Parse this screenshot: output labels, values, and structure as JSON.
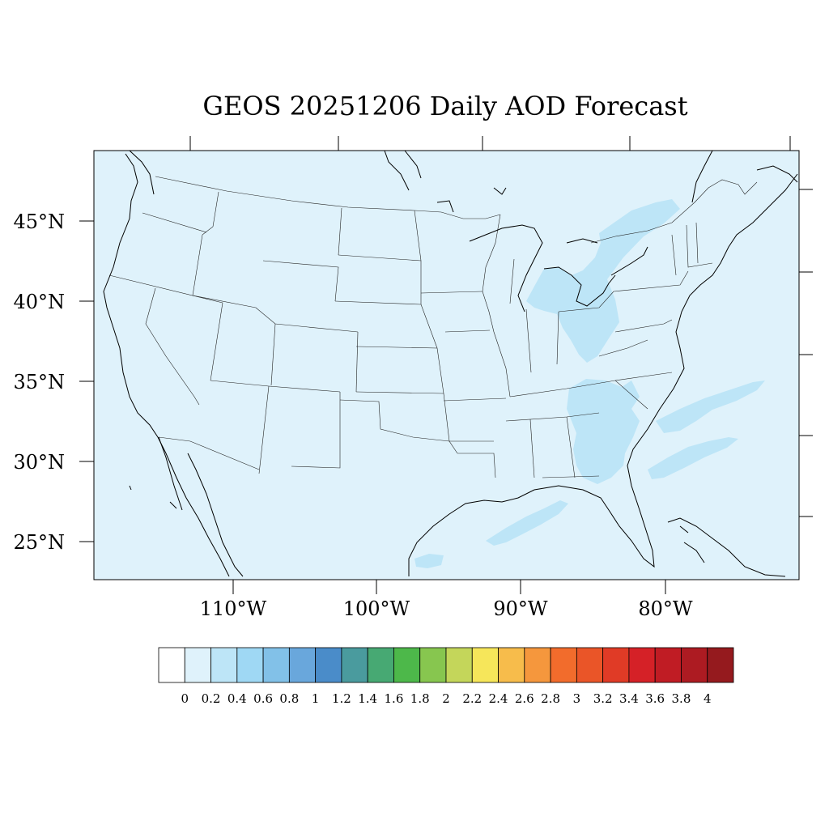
{
  "title": "GEOS 20251206 Daily AOD Forecast",
  "lat_labels": [
    "45°N",
    "40°N",
    "35°N",
    "30°N",
    "25°N"
  ],
  "lon_labels": [
    "110°W",
    "100°W",
    "90°W",
    "80°W"
  ],
  "colorbar": {
    "labels": [
      "0",
      "0.2",
      "0.4",
      "0.6",
      "0.8",
      "1",
      "1.2",
      "1.4",
      "1.6",
      "1.8",
      "2",
      "2.2",
      "2.4",
      "2.6",
      "2.8",
      "3",
      "3.2",
      "3.4",
      "3.6",
      "3.8",
      "4"
    ],
    "colors": [
      "#ffffff",
      "#dff2fb",
      "#bde5f7",
      "#9fd8f4",
      "#82c1e8",
      "#69a7dc",
      "#4a8cc9",
      "#4a9b9e",
      "#47a973",
      "#4db84a",
      "#87c64f",
      "#c4d65a",
      "#f6e65a",
      "#f7bc4b",
      "#f5973d",
      "#f26c2c",
      "#ea5528",
      "#e03b26",
      "#d52127",
      "#c01c24",
      "#ad1b22",
      "#951a1e"
    ]
  },
  "map_colors": {
    "background": "#dff2fb",
    "aod_band": "#bde5f7"
  }
}
